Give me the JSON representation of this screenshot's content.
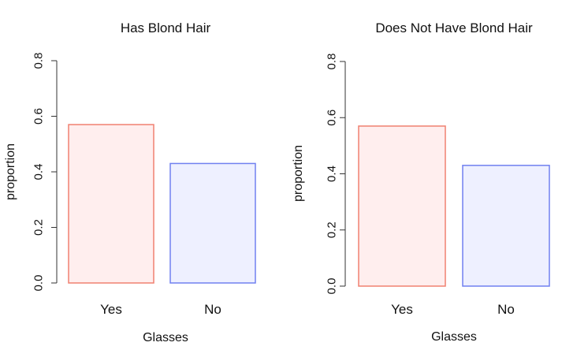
{
  "chart_data": [
    {
      "type": "bar",
      "title": "Has Blond Hair",
      "xlabel": "Glasses",
      "ylabel": "proportion",
      "categories": [
        "Yes",
        "No"
      ],
      "values": [
        0.57,
        0.43
      ],
      "ylim": [
        0,
        0.8
      ],
      "yticks": [
        "0.0",
        "0.2",
        "0.4",
        "0.6",
        "0.8"
      ],
      "bar_fill": [
        "#ffeeee",
        "#eef0ff"
      ],
      "bar_stroke": [
        "#f08070",
        "#7080f0"
      ],
      "grid": false
    },
    {
      "type": "bar",
      "title": "Does Not Have Blond Hair",
      "xlabel": "Glasses",
      "ylabel": "proportion",
      "categories": [
        "Yes",
        "No"
      ],
      "values": [
        0.57,
        0.43
      ],
      "ylim": [
        0,
        0.8
      ],
      "yticks": [
        "0.0",
        "0.2",
        "0.4",
        "0.6",
        "0.8"
      ],
      "bar_fill": [
        "#ffeeee",
        "#eef0ff"
      ],
      "bar_stroke": [
        "#f08070",
        "#7080f0"
      ],
      "grid": false
    }
  ]
}
